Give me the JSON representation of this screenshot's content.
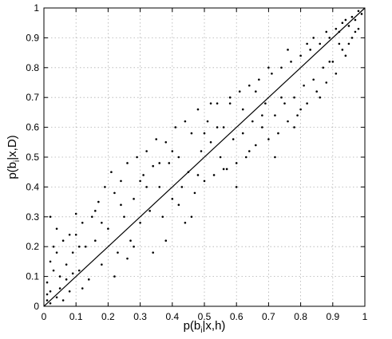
{
  "chart_data": {
    "type": "scatter",
    "title": "",
    "xlabel": {
      "prefix": "p(b",
      "sub": "i",
      "suffix": "|x,h)"
    },
    "ylabel": {
      "prefix": "p(b",
      "sub": "i",
      "suffix": "|x,D)"
    },
    "xlim": [
      0,
      1
    ],
    "ylim": [
      0,
      1
    ],
    "xticks": [
      "0",
      "0.1",
      "0.2",
      "0.3",
      "0.4",
      "0.5",
      "0.6",
      "0.7",
      "0.8",
      "0.9",
      "1"
    ],
    "yticks": [
      "0",
      "0.1",
      "0.2",
      "0.3",
      "0.4",
      "0.5",
      "0.6",
      "0.7",
      "0.8",
      "0.9",
      "1"
    ],
    "grid": true,
    "reference_line": {
      "from": [
        0,
        0
      ],
      "to": [
        1,
        1
      ]
    },
    "series": [
      {
        "marker": "dot",
        "points": [
          [
            0.02,
            0.05
          ],
          [
            0.01,
            0.08
          ],
          [
            0.03,
            0.12
          ],
          [
            0.02,
            0.15
          ],
          [
            0.04,
            0.03
          ],
          [
            0.01,
            0.02
          ],
          [
            0.05,
            0.1
          ],
          [
            0.03,
            0.2
          ],
          [
            0.06,
            0.22
          ],
          [
            0.04,
            0.26
          ],
          [
            0.02,
            0.3
          ],
          [
            0.07,
            0.14
          ],
          [
            0.08,
            0.05
          ],
          [
            0.09,
            0.18
          ],
          [
            0.1,
            0.24
          ],
          [
            0.11,
            0.12
          ],
          [
            0.12,
            0.28
          ],
          [
            0.1,
            0.31
          ],
          [
            0.13,
            0.2
          ],
          [
            0.14,
            0.09
          ],
          [
            0.15,
            0.3
          ],
          [
            0.16,
            0.22
          ],
          [
            0.17,
            0.35
          ],
          [
            0.18,
            0.14
          ],
          [
            0.19,
            0.4
          ],
          [
            0.2,
            0.26
          ],
          [
            0.21,
            0.45
          ],
          [
            0.22,
            0.38
          ],
          [
            0.23,
            0.18
          ],
          [
            0.24,
            0.42
          ],
          [
            0.25,
            0.3
          ],
          [
            0.26,
            0.48
          ],
          [
            0.27,
            0.22
          ],
          [
            0.28,
            0.36
          ],
          [
            0.29,
            0.5
          ],
          [
            0.3,
            0.28
          ],
          [
            0.31,
            0.44
          ],
          [
            0.32,
            0.52
          ],
          [
            0.33,
            0.32
          ],
          [
            0.34,
            0.47
          ],
          [
            0.35,
            0.56
          ],
          [
            0.36,
            0.4
          ],
          [
            0.37,
            0.3
          ],
          [
            0.38,
            0.55
          ],
          [
            0.39,
            0.48
          ],
          [
            0.4,
            0.36
          ],
          [
            0.41,
            0.6
          ],
          [
            0.42,
            0.5
          ],
          [
            0.43,
            0.4
          ],
          [
            0.44,
            0.62
          ],
          [
            0.45,
            0.45
          ],
          [
            0.46,
            0.58
          ],
          [
            0.47,
            0.38
          ],
          [
            0.48,
            0.66
          ],
          [
            0.49,
            0.52
          ],
          [
            0.5,
            0.42
          ],
          [
            0.51,
            0.62
          ],
          [
            0.52,
            0.55
          ],
          [
            0.53,
            0.44
          ],
          [
            0.54,
            0.68
          ],
          [
            0.55,
            0.5
          ],
          [
            0.56,
            0.6
          ],
          [
            0.57,
            0.46
          ],
          [
            0.58,
            0.7
          ],
          [
            0.59,
            0.56
          ],
          [
            0.6,
            0.48
          ],
          [
            0.61,
            0.72
          ],
          [
            0.62,
            0.58
          ],
          [
            0.63,
            0.5
          ],
          [
            0.64,
            0.74
          ],
          [
            0.65,
            0.62
          ],
          [
            0.66,
            0.54
          ],
          [
            0.67,
            0.76
          ],
          [
            0.68,
            0.6
          ],
          [
            0.69,
            0.68
          ],
          [
            0.7,
            0.56
          ],
          [
            0.71,
            0.78
          ],
          [
            0.72,
            0.64
          ],
          [
            0.73,
            0.58
          ],
          [
            0.74,
            0.8
          ],
          [
            0.75,
            0.68
          ],
          [
            0.76,
            0.62
          ],
          [
            0.77,
            0.82
          ],
          [
            0.78,
            0.7
          ],
          [
            0.79,
            0.64
          ],
          [
            0.8,
            0.84
          ],
          [
            0.81,
            0.74
          ],
          [
            0.82,
            0.68
          ],
          [
            0.83,
            0.86
          ],
          [
            0.84,
            0.76
          ],
          [
            0.85,
            0.72
          ],
          [
            0.86,
            0.88
          ],
          [
            0.87,
            0.8
          ],
          [
            0.88,
            0.75
          ],
          [
            0.89,
            0.9
          ],
          [
            0.9,
            0.82
          ],
          [
            0.91,
            0.78
          ],
          [
            0.92,
            0.92
          ],
          [
            0.93,
            0.86
          ],
          [
            0.94,
            0.84
          ],
          [
            0.95,
            0.94
          ],
          [
            0.96,
            0.9
          ],
          [
            0.97,
            0.96
          ],
          [
            0.98,
            0.93
          ],
          [
            0.99,
            0.98
          ],
          [
            0.97,
            0.92
          ],
          [
            0.96,
            0.97
          ],
          [
            0.98,
            0.99
          ],
          [
            0.95,
            0.88
          ],
          [
            0.93,
            0.95
          ],
          [
            0.91,
            0.93
          ],
          [
            0.89,
            0.82
          ],
          [
            0.34,
            0.18
          ],
          [
            0.38,
            0.22
          ],
          [
            0.44,
            0.28
          ],
          [
            0.5,
            0.58
          ],
          [
            0.58,
            0.68
          ],
          [
            0.64,
            0.52
          ],
          [
            0.7,
            0.8
          ],
          [
            0.78,
            0.6
          ],
          [
            0.82,
            0.88
          ],
          [
            0.86,
            0.7
          ],
          [
            0.22,
            0.1
          ],
          [
            0.26,
            0.16
          ],
          [
            0.3,
            0.42
          ],
          [
            0.16,
            0.32
          ],
          [
            0.12,
            0.06
          ],
          [
            0.08,
            0.24
          ],
          [
            0.06,
            0.02
          ],
          [
            0.04,
            0.18
          ],
          [
            0.02,
            0.01
          ],
          [
            0.01,
            0.04
          ],
          [
            0.05,
            0.06
          ],
          [
            0.07,
            0.09
          ],
          [
            0.09,
            0.11
          ],
          [
            0.11,
            0.2
          ],
          [
            0.46,
            0.3
          ],
          [
            0.52,
            0.68
          ],
          [
            0.6,
            0.4
          ],
          [
            0.66,
            0.72
          ],
          [
            0.72,
            0.5
          ],
          [
            0.76,
            0.86
          ],
          [
            0.8,
            0.66
          ],
          [
            0.84,
            0.9
          ],
          [
            0.18,
            0.28
          ],
          [
            0.24,
            0.34
          ],
          [
            0.28,
            0.2
          ],
          [
            0.32,
            0.4
          ],
          [
            0.36,
            0.48
          ],
          [
            0.4,
            0.52
          ],
          [
            0.42,
            0.34
          ],
          [
            0.48,
            0.44
          ],
          [
            0.54,
            0.6
          ],
          [
            0.56,
            0.46
          ],
          [
            0.62,
            0.66
          ],
          [
            0.68,
            0.64
          ],
          [
            0.74,
            0.7
          ],
          [
            0.88,
            0.92
          ],
          [
            0.92,
            0.88
          ],
          [
            0.94,
            0.96
          ]
        ]
      }
    ]
  }
}
